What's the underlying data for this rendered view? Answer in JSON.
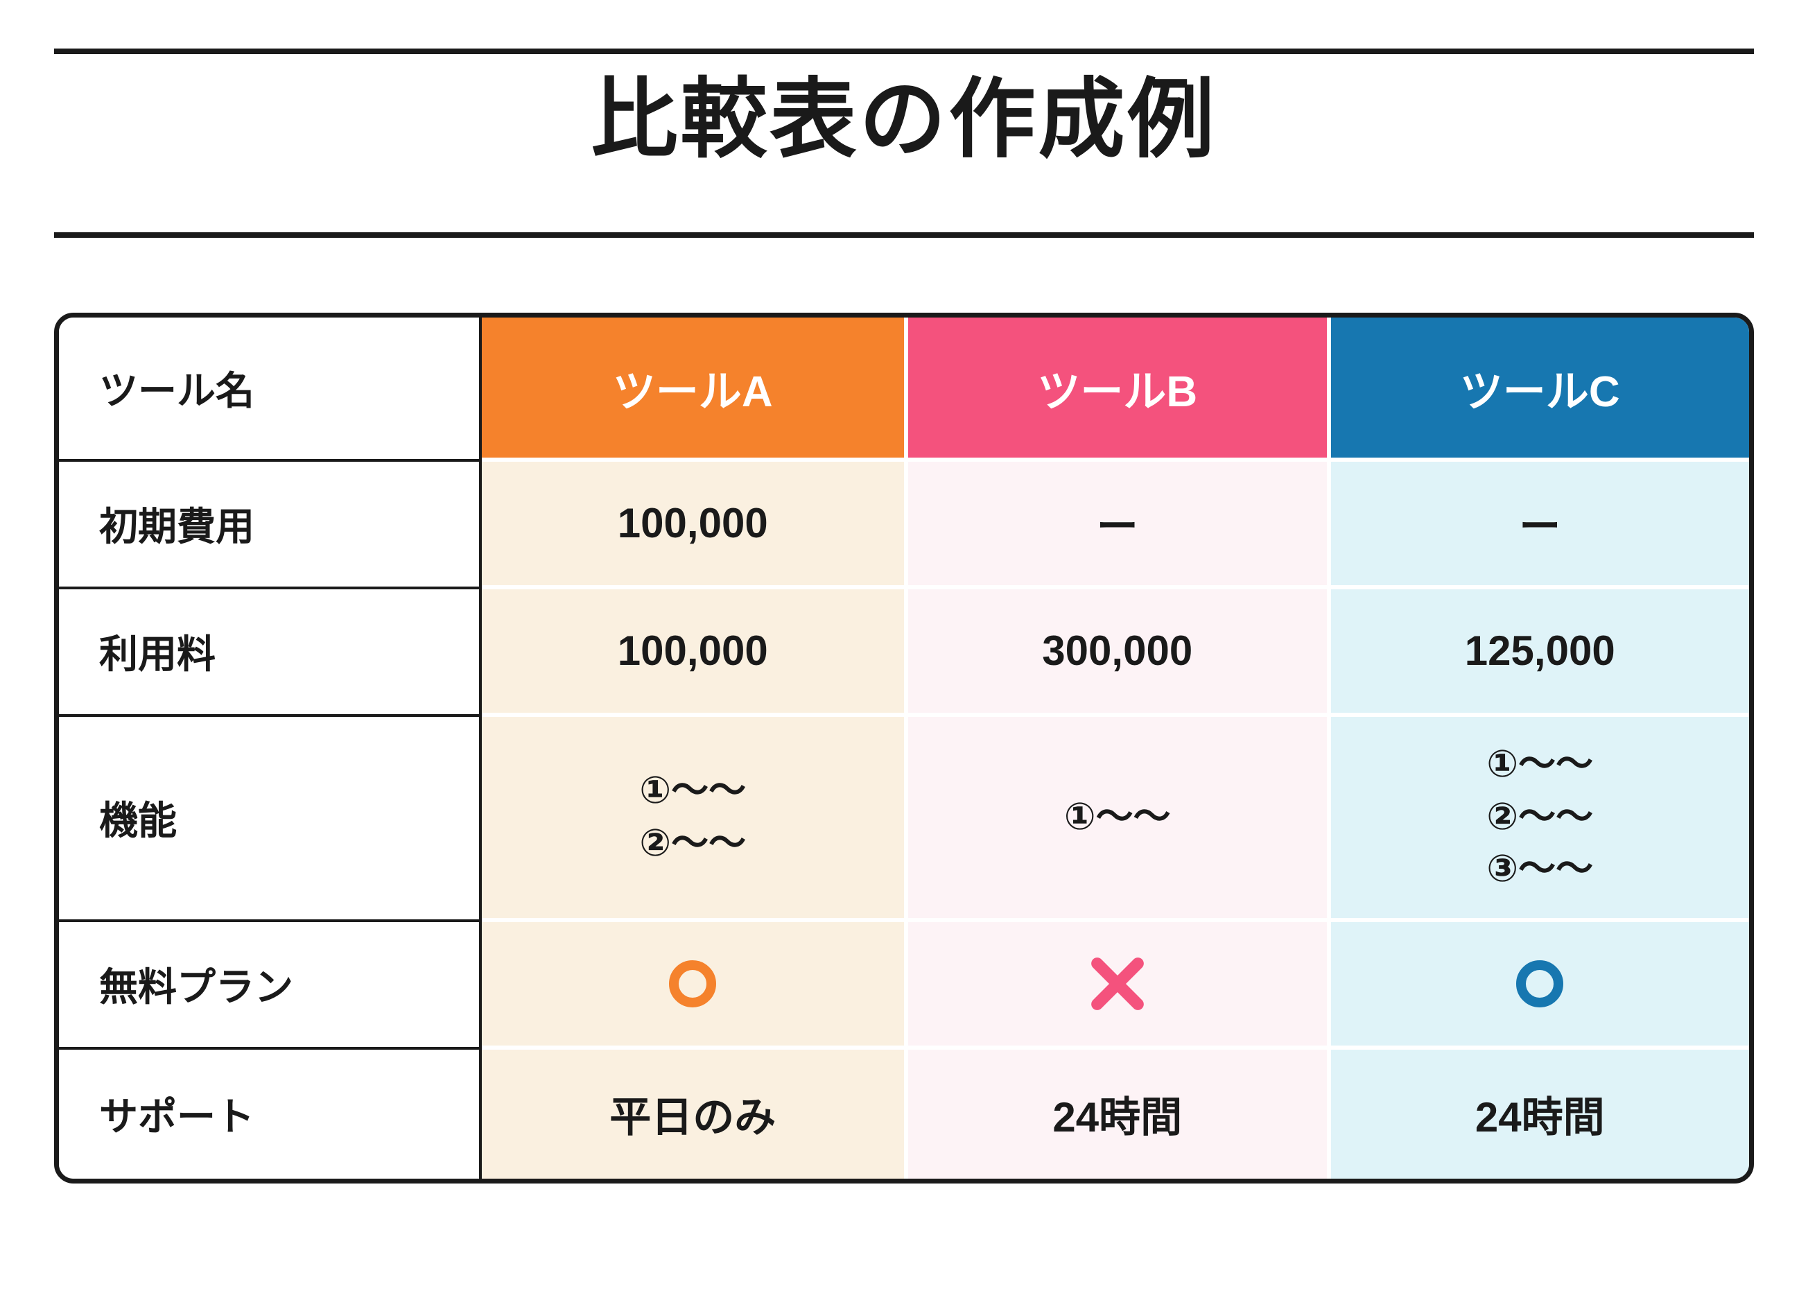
{
  "page": {
    "title": "比較表の作成例"
  },
  "colors": {
    "tool_a": "#F5822C",
    "tool_b": "#F4527D",
    "tool_c": "#1777B0",
    "tool_a_cell": "#FAF0E0",
    "tool_b_cell": "#FDF3F6",
    "tool_c_cell": "#DFF3F8",
    "text": "#1A1A1A"
  },
  "table": {
    "header": {
      "label": "ツール名",
      "tools": [
        "ツールA",
        "ツールB",
        "ツールC"
      ]
    },
    "rows": [
      {
        "label": "初期費用",
        "a": "100,000",
        "b": "ー",
        "c": "ー"
      },
      {
        "label": "利用料",
        "a": "100,000",
        "b": "300,000",
        "c": "125,000"
      },
      {
        "label": "機能",
        "a": [
          "①～～",
          "②～～"
        ],
        "b": [
          "①～～"
        ],
        "c": [
          "①～～",
          "②～～",
          "③～～"
        ]
      },
      {
        "label": "無料プラン",
        "a": "circle",
        "b": "cross",
        "c": "circle"
      },
      {
        "label": "サポート",
        "a": "平日のみ",
        "b": "24時間",
        "c": "24時間"
      }
    ]
  },
  "chart_data": {
    "type": "table",
    "title": "比較表の作成例",
    "columns": [
      "ツール名",
      "ツールA",
      "ツールB",
      "ツールC"
    ],
    "rows": [
      [
        "初期費用",
        "100,000",
        "ー",
        "ー"
      ],
      [
        "利用料",
        "100,000",
        "300,000",
        "125,000"
      ],
      [
        "機能",
        "①～～ ②～～",
        "①～～",
        "①～～ ②～～ ③～～"
      ],
      [
        "無料プラン",
        "○",
        "×",
        "○"
      ],
      [
        "サポート",
        "平日のみ",
        "24時間",
        "24時間"
      ]
    ],
    "legend_position": "none",
    "grid": true
  }
}
